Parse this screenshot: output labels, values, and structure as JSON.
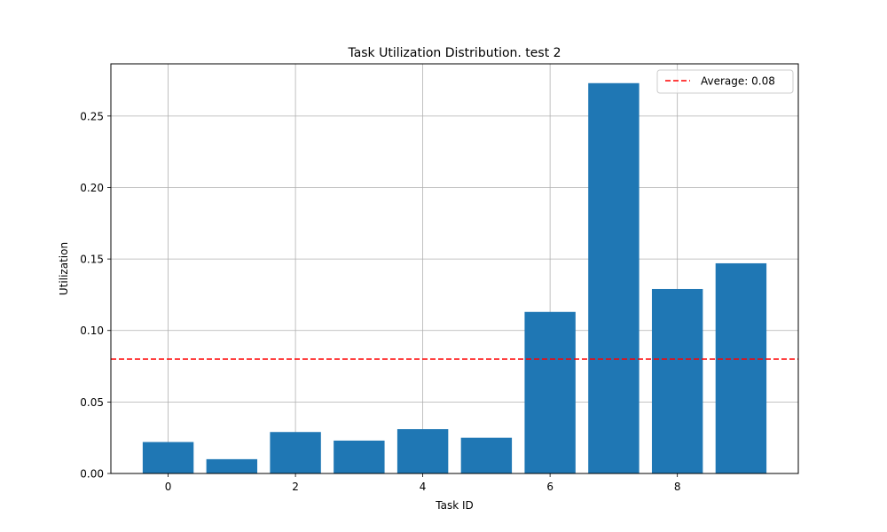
{
  "chart_data": {
    "type": "bar",
    "title": "Task Utilization Distribution. test 2",
    "xlabel": "Task ID",
    "ylabel": "Utilization",
    "categories": [
      0,
      1,
      2,
      3,
      4,
      5,
      6,
      7,
      8,
      9
    ],
    "values": [
      0.022,
      0.01,
      0.029,
      0.023,
      0.031,
      0.025,
      0.113,
      0.273,
      0.129,
      0.147
    ],
    "xlim": [
      -0.9,
      9.9
    ],
    "ylim": [
      0,
      0.2865
    ],
    "xticks": [
      0,
      2,
      4,
      6,
      8
    ],
    "xtick_labels": [
      "0",
      "2",
      "4",
      "6",
      "8"
    ],
    "yticks": [
      0,
      0.05,
      0.1,
      0.15,
      0.2,
      0.25
    ],
    "ytick_labels": [
      "0.00",
      "0.05",
      "0.10",
      "0.15",
      "0.20",
      "0.25"
    ],
    "grid": true,
    "bar_color": "#1f77b4",
    "average_line": {
      "value": 0.08,
      "label": "Average: 0.08",
      "color": "#ff0000",
      "style": "dashed"
    },
    "legend_position": "top-right"
  }
}
